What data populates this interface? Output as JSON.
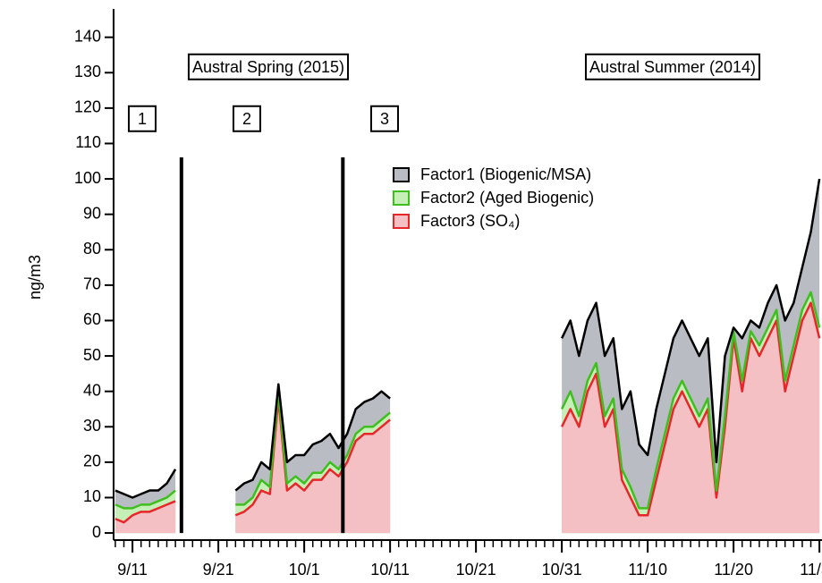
{
  "chart_data": {
    "type": "stacked-area",
    "ylabel": "ng/m3",
    "annotations": [
      "Austral Spring (2015)",
      "Austral Summer (2014)",
      "1",
      "2",
      "3"
    ],
    "vlines": [
      16.7,
      35.5
    ],
    "x": [
      9,
      10,
      11,
      12,
      13,
      14,
      15,
      16,
      17,
      18,
      19,
      20,
      21,
      22,
      23,
      24,
      25,
      26,
      27,
      28,
      29,
      30,
      31,
      32,
      33,
      34,
      35,
      36,
      37,
      38,
      39,
      40,
      41,
      42,
      43,
      44,
      45,
      46,
      47,
      48,
      49,
      50,
      51,
      52,
      53,
      54,
      55,
      56,
      57,
      58,
      59,
      60,
      61,
      62,
      63,
      64,
      65,
      66,
      67,
      68,
      69,
      70,
      71,
      72,
      73,
      74,
      75,
      76,
      77,
      78,
      79,
      80,
      81,
      82,
      83,
      84,
      85,
      86,
      87,
      88,
      89,
      90,
      91
    ],
    "series": [
      {
        "name": "Factor1 (Biogenic/MSA)",
        "color": "#000000",
        "fill": "#b9bcc2",
        "values": [
          4,
          4,
          3,
          3,
          4,
          3,
          4,
          6,
          null,
          null,
          null,
          null,
          null,
          null,
          4,
          6,
          5,
          5,
          5,
          2,
          6,
          6,
          8,
          8,
          9,
          8,
          6,
          6,
          7,
          7,
          8,
          8,
          4,
          null,
          null,
          null,
          null,
          null,
          null,
          null,
          null,
          null,
          null,
          null,
          null,
          null,
          null,
          null,
          null,
          null,
          null,
          null,
          20,
          20,
          17,
          17,
          17,
          17,
          17,
          17,
          27,
          18,
          15,
          17,
          17,
          17,
          17,
          17,
          17,
          17,
          8,
          17,
          1,
          12,
          3,
          5,
          7,
          7,
          17,
          12,
          12,
          17,
          42
        ]
      },
      {
        "name": "Factor2 (Aged Biogenic)",
        "color": "#3fbf1f",
        "fill": "#c6efb8",
        "values": [
          4,
          4,
          2,
          2,
          2,
          2,
          2,
          3,
          null,
          null,
          null,
          null,
          null,
          null,
          3,
          2,
          2,
          3,
          2,
          2,
          2,
          2,
          2,
          2,
          2,
          2,
          2,
          2,
          2,
          2,
          2,
          2,
          2,
          null,
          null,
          null,
          null,
          null,
          null,
          null,
          null,
          null,
          null,
          null,
          null,
          null,
          null,
          null,
          null,
          null,
          null,
          null,
          5,
          5,
          3,
          3,
          3,
          3,
          3,
          3,
          3,
          2,
          2,
          3,
          3,
          3,
          3,
          3,
          3,
          3,
          2,
          3,
          2,
          3,
          2,
          3,
          3,
          3,
          3,
          3,
          3,
          3,
          3
        ]
      },
      {
        "name": "Factor3 (SO₄)",
        "color": "#e8262a",
        "fill": "#f4c0c4",
        "values": [
          4,
          3,
          5,
          6,
          6,
          7,
          8,
          9,
          null,
          null,
          null,
          null,
          null,
          null,
          5,
          6,
          8,
          12,
          11,
          38,
          12,
          14,
          12,
          15,
          15,
          18,
          16,
          20,
          26,
          28,
          28,
          30,
          32,
          null,
          null,
          null,
          null,
          null,
          null,
          null,
          null,
          null,
          null,
          null,
          null,
          null,
          null,
          null,
          null,
          null,
          null,
          null,
          30,
          35,
          30,
          40,
          45,
          30,
          35,
          15,
          10,
          5,
          5,
          15,
          25,
          35,
          40,
          35,
          30,
          35,
          10,
          30,
          55,
          40,
          55,
          50,
          55,
          60,
          40,
          50,
          60,
          65,
          55
        ]
      }
    ],
    "xlim": [
      8.8,
      91.3
    ],
    "xticks": [
      {
        "value": 11,
        "label": "9/11"
      },
      {
        "value": 21,
        "label": "9/21"
      },
      {
        "value": 31,
        "label": "10/1"
      },
      {
        "value": 41,
        "label": "10/11"
      },
      {
        "value": 51,
        "label": "10/21"
      },
      {
        "value": 61,
        "label": "10/31"
      },
      {
        "value": 71,
        "label": "11/10"
      },
      {
        "value": 81,
        "label": "11/20"
      },
      {
        "value": 91,
        "label": "11/30"
      }
    ],
    "ylim": [
      -2,
      148
    ],
    "yticks": [
      0,
      10,
      20,
      30,
      40,
      50,
      60,
      70,
      80,
      90,
      100,
      110,
      120,
      130,
      140
    ],
    "legend": "upper-middle"
  }
}
